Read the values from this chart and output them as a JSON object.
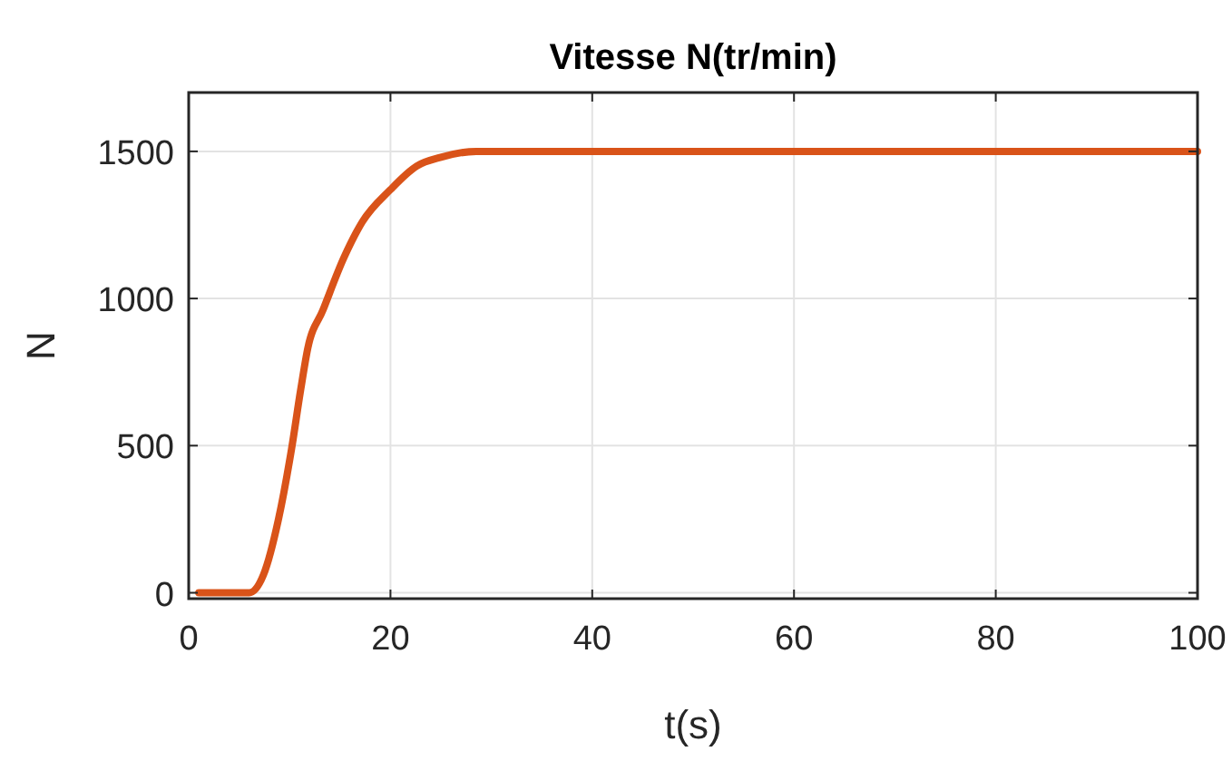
{
  "chart_data": {
    "type": "line",
    "title": "Vitesse N(tr/min)",
    "xlabel": "t(s)",
    "ylabel": "N",
    "series": [
      {
        "color": "#d95319",
        "x": [
          1,
          6,
          7.4,
          8.9,
          10.2,
          11.1,
          11.8,
          13.3,
          15.4,
          17.2,
          20,
          22.6,
          25,
          28.5,
          40,
          100
        ],
        "values": [
          0,
          0,
          60,
          250,
          490,
          690,
          830,
          960,
          1140,
          1260,
          1370,
          1450,
          1480,
          1500,
          1500,
          1500
        ]
      }
    ],
    "xlim": [
      0,
      100
    ],
    "xticks": [
      0,
      20,
      40,
      60,
      80,
      100
    ],
    "ylim": [
      -20,
      1700
    ],
    "yticks": [
      0,
      500,
      1000,
      1500
    ],
    "grid": true
  }
}
